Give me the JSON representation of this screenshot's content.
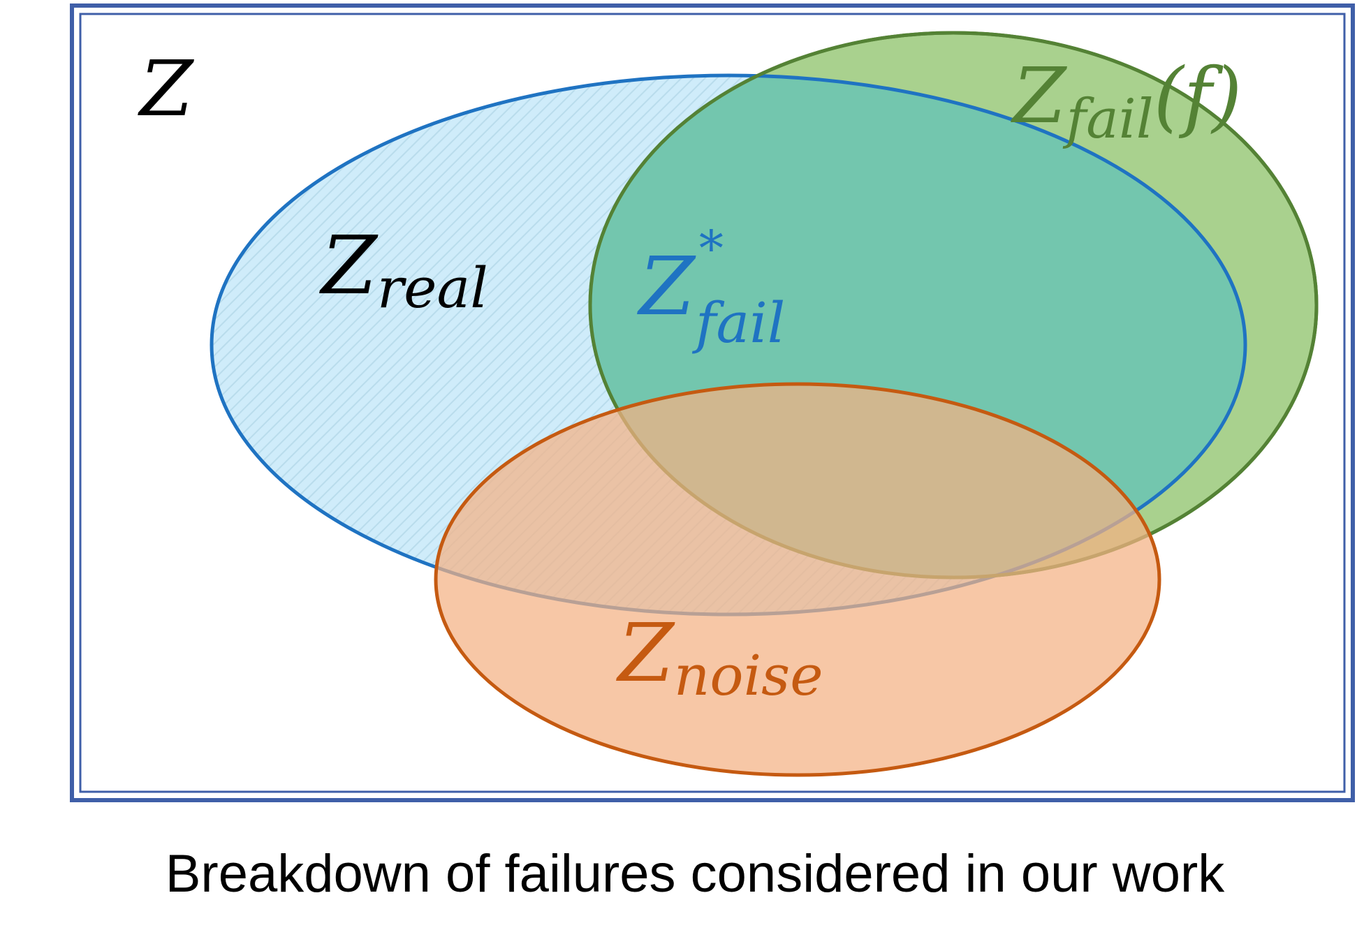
{
  "diagram": {
    "caption": "Breakdown of failures considered in our work",
    "universe": {
      "symbol": "Z",
      "color": "#000000",
      "border_color": "#3f5fa8"
    },
    "sets": [
      {
        "id": "real",
        "symbol": "Z",
        "subscript": "real",
        "color": "#000000",
        "fill": "#a8ddf5",
        "stroke": "#1f73c2",
        "pattern": "diagonal-hatch"
      },
      {
        "id": "fail-star",
        "symbol": "Z",
        "subscript": "fail",
        "superscript": "*",
        "color": "#1f73c2"
      },
      {
        "id": "fail-f",
        "symbol": "Z",
        "subscript": "fail",
        "suffix": "(f)",
        "color": "#548235",
        "fill": "#a9d18e",
        "stroke": "#548235"
      },
      {
        "id": "noise",
        "symbol": "Z",
        "subscript": "noise",
        "color": "#c55a11",
        "fill": "#f4b183",
        "stroke": "#c55a11"
      }
    ]
  }
}
